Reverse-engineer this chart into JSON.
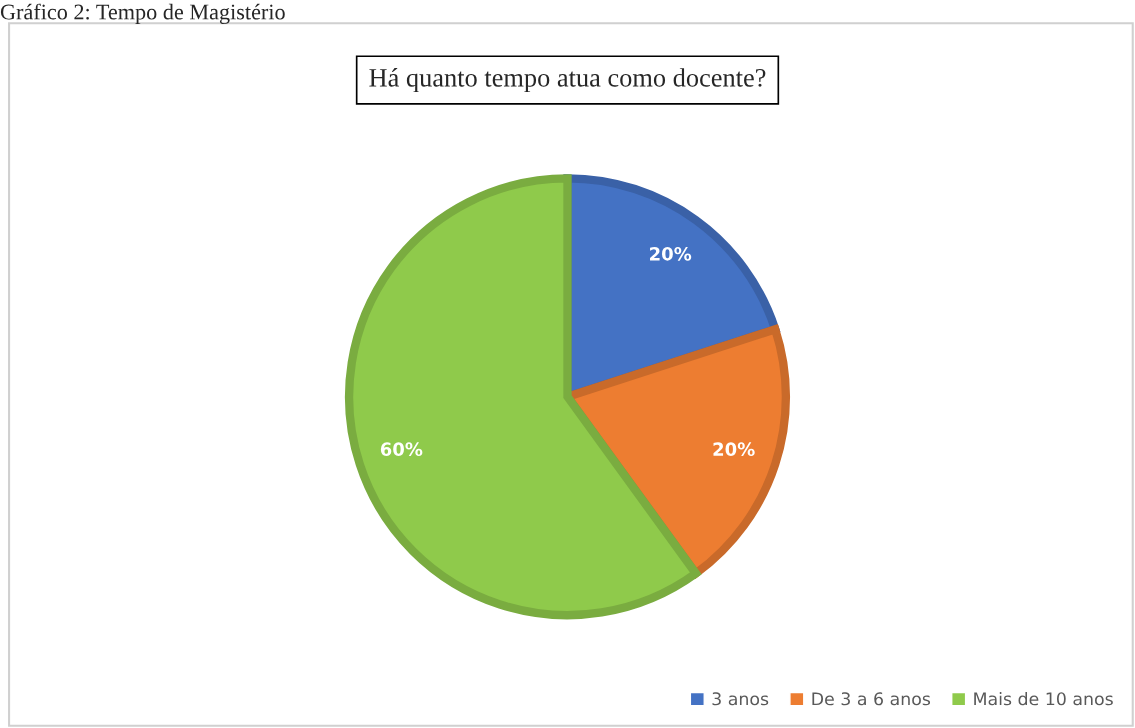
{
  "chart_data": {
    "type": "pie",
    "title": "Há quanto tempo atua como docente?",
    "categories": [
      "3 anos",
      "De 3 a 6 anos",
      "Mais de 10 anos"
    ],
    "values": [
      20,
      20,
      60
    ],
    "colors": [
      "#4472c4",
      "#ed7d31",
      "#8fca4b"
    ],
    "value_labels": [
      "20%",
      "20%",
      "60%"
    ],
    "legend": "bottom right",
    "annotations": [
      "Gráfico 2: Tempo de Magistério"
    ]
  }
}
